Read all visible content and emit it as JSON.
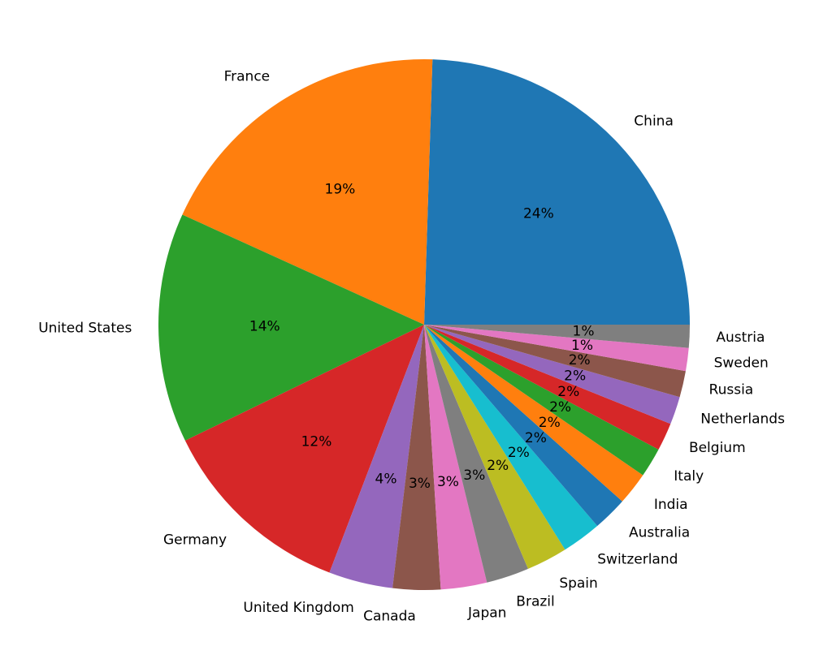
{
  "chart_data": {
    "type": "pie",
    "categories": [
      "China",
      "France",
      "United States",
      "Germany",
      "United Kingdom",
      "Canada",
      "Japan",
      "Brazil",
      "Spain",
      "Switzerland",
      "Australia",
      "India",
      "Italy",
      "Belgium",
      "Netherlands",
      "Russia",
      "Sweden",
      "Austria"
    ],
    "values": [
      24.5,
      18.7,
      14.0,
      12.0,
      3.9,
      2.9,
      2.8,
      2.6,
      2.5,
      2.4,
      2.1,
      2.0,
      1.8,
      1.7,
      1.7,
      1.6,
      1.4,
      1.4
    ],
    "value_labels": [
      "24%",
      "19%",
      "14%",
      "12%",
      "4%",
      "3%",
      "3%",
      "3%",
      "2%",
      "2%",
      "2%",
      "2%",
      "2%",
      "2%",
      "2%",
      "2%",
      "1%",
      "1%"
    ],
    "colors": [
      "#1f77b4",
      "#ff7f0e",
      "#2ca02c",
      "#d62728",
      "#9467bd",
      "#8c564b",
      "#e377c2",
      "#7f7f7f",
      "#bcbd22",
      "#17becf",
      "#1f77b4",
      "#ff7f0e",
      "#2ca02c",
      "#d62728",
      "#9467bd",
      "#8c564b",
      "#e377c2",
      "#7f7f7f"
    ]
  }
}
